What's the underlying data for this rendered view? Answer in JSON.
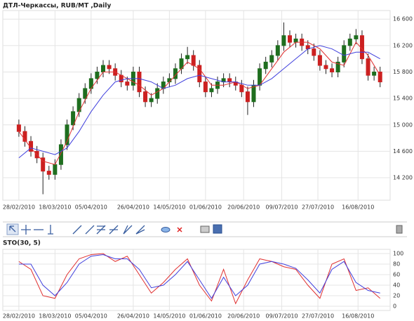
{
  "chart_data": [
    {
      "type": "candlestick",
      "title": "ДТЛ-Черкассы,  RUB/MT ,Daily",
      "x": [
        "28/02/2010",
        "03/03/2010",
        "06/03/2010",
        "09/03/2010",
        "12/03/2010",
        "15/03/2010",
        "18/03/2010",
        "21/03/2010",
        "24/03/2010",
        "27/03/2010",
        "30/03/2010",
        "02/04/2010",
        "05/04/2010",
        "08/04/2010",
        "11/04/2010",
        "14/04/2010",
        "17/04/2010",
        "20/04/2010",
        "23/04/2010",
        "26/04/2010",
        "29/04/2010",
        "02/05/2010",
        "05/05/2010",
        "08/05/2010",
        "11/05/2010",
        "14/05/2010",
        "17/05/2010",
        "20/05/2010",
        "23/05/2010",
        "26/05/2010",
        "29/05/2010",
        "01/06/2010",
        "04/06/2010",
        "07/06/2010",
        "10/06/2010",
        "13/06/2010",
        "16/06/2010",
        "19/06/2010",
        "22/06/2010",
        "25/06/2010",
        "28/06/2010",
        "01/07/2010",
        "04/07/2010",
        "07/07/2010",
        "10/07/2010",
        "13/07/2010",
        "16/07/2010",
        "19/07/2010",
        "22/07/2010",
        "25/07/2010",
        "28/07/2010",
        "31/07/2010",
        "03/08/2010",
        "06/08/2010",
        "09/08/2010",
        "12/08/2010",
        "15/08/2010",
        "18/08/2010",
        "21/08/2010",
        "24/08/2010",
        "27/08/2010"
      ],
      "open": [
        15000,
        14900,
        14750,
        14600,
        14500,
        14300,
        14250,
        14400,
        14700,
        15000,
        15200,
        15400,
        15550,
        15700,
        15800,
        15900,
        15850,
        15750,
        15650,
        15600,
        15800,
        15500,
        15350,
        15400,
        15550,
        15650,
        15700,
        15850,
        16000,
        16050,
        15900,
        15650,
        15500,
        15550,
        15650,
        15700,
        15650,
        15600,
        15500,
        15350,
        15600,
        15850,
        15950,
        16050,
        16200,
        16350,
        16250,
        16300,
        16200,
        16150,
        16050,
        15900,
        15850,
        15800,
        15950,
        16200,
        16300,
        16350,
        16000,
        15750,
        15800
      ],
      "high": [
        15080,
        14980,
        14830,
        14680,
        14580,
        14380,
        14480,
        14780,
        15080,
        15280,
        15480,
        15630,
        15780,
        15880,
        15980,
        15980,
        15930,
        15830,
        15730,
        15880,
        15880,
        15580,
        15480,
        15630,
        15730,
        15780,
        15930,
        16080,
        16180,
        16130,
        15980,
        15730,
        15630,
        15730,
        15780,
        15780,
        15730,
        15680,
        15580,
        15680,
        15930,
        16030,
        16130,
        16280,
        16550,
        16430,
        16380,
        16380,
        16280,
        16230,
        16130,
        15980,
        15930,
        16030,
        16280,
        16380,
        16450,
        16430,
        16080,
        15880,
        15880
      ],
      "low": [
        14820,
        14670,
        14520,
        14420,
        13950,
        14170,
        14170,
        14320,
        14620,
        14920,
        15120,
        15320,
        15470,
        15620,
        15720,
        15770,
        15670,
        15570,
        15520,
        15520,
        15420,
        15270,
        15270,
        15320,
        15470,
        15570,
        15620,
        15770,
        15920,
        15820,
        15570,
        15420,
        15420,
        15470,
        15570,
        15570,
        15520,
        15420,
        15150,
        15270,
        15520,
        15770,
        15870,
        15970,
        16120,
        16170,
        16170,
        16120,
        16070,
        15970,
        15820,
        15770,
        15720,
        15720,
        15870,
        16120,
        16220,
        15920,
        15670,
        15670,
        15570
      ],
      "close": [
        14900,
        14750,
        14600,
        14500,
        14300,
        14250,
        14400,
        14700,
        15000,
        15200,
        15400,
        15550,
        15700,
        15800,
        15900,
        15850,
        15750,
        15650,
        15600,
        15800,
        15500,
        15350,
        15400,
        15550,
        15650,
        15700,
        15850,
        16000,
        16050,
        15900,
        15650,
        15500,
        15550,
        15650,
        15700,
        15650,
        15600,
        15500,
        15350,
        15600,
        15850,
        15950,
        16050,
        16200,
        16350,
        16250,
        16300,
        16200,
        16150,
        16050,
        15900,
        15850,
        15800,
        15950,
        16200,
        16300,
        16350,
        16000,
        15750,
        15800,
        15650
      ],
      "up_color": "#1f6e1f",
      "down_color": "#cc2020",
      "series": [
        {
          "color": "#e03030",
          "x": [
            "28/02/2010",
            "06/03/2010",
            "12/03/2010",
            "18/03/2010",
            "24/03/2010",
            "30/03/2010",
            "05/04/2010",
            "11/04/2010",
            "17/04/2010",
            "23/04/2010",
            "29/04/2010",
            "05/05/2010",
            "11/05/2010",
            "17/05/2010",
            "23/05/2010",
            "29/05/2010",
            "04/06/2010",
            "10/06/2010",
            "16/06/2010",
            "22/06/2010",
            "28/06/2010",
            "04/07/2010",
            "10/07/2010",
            "16/07/2010",
            "22/07/2010",
            "28/07/2010",
            "03/08/2010",
            "09/08/2010",
            "15/08/2010",
            "21/08/2010",
            "27/08/2010"
          ],
          "values": [
            14900,
            14650,
            14450,
            14400,
            14750,
            15200,
            15550,
            15800,
            15800,
            15700,
            15600,
            15450,
            15550,
            15750,
            15950,
            15850,
            15600,
            15600,
            15650,
            15550,
            15600,
            15850,
            16100,
            16250,
            16250,
            16150,
            15950,
            15900,
            16250,
            16050,
            15750
          ]
        },
        {
          "color": "#4040dd",
          "x": [
            "28/02/2010",
            "06/03/2010",
            "12/03/2010",
            "18/03/2010",
            "24/03/2010",
            "30/03/2010",
            "05/04/2010",
            "11/04/2010",
            "17/04/2010",
            "23/04/2010",
            "29/04/2010",
            "05/05/2010",
            "11/05/2010",
            "17/05/2010",
            "23/05/2010",
            "29/05/2010",
            "04/06/2010",
            "10/06/2010",
            "16/06/2010",
            "22/06/2010",
            "28/06/2010",
            "04/07/2010",
            "10/07/2010",
            "16/07/2010",
            "22/07/2010",
            "28/07/2010",
            "03/08/2010",
            "09/08/2010",
            "15/08/2010",
            "21/08/2010",
            "27/08/2010"
          ],
          "values": [
            14500,
            14650,
            14600,
            14550,
            14650,
            14900,
            15200,
            15450,
            15650,
            15700,
            15700,
            15650,
            15550,
            15600,
            15700,
            15750,
            15700,
            15650,
            15650,
            15600,
            15600,
            15700,
            15850,
            16000,
            16150,
            16200,
            16150,
            16050,
            16100,
            16100,
            16000
          ]
        }
      ],
      "xlim": [
        "20/02/2010",
        "01/09/2010"
      ],
      "xticks": [
        "28/02/2010",
        "18/03/2010",
        "05/04/2010",
        "26/04/2010",
        "14/05/2010",
        "01/06/2010",
        "20/06/2010",
        "09/07/2010",
        "27/07/2010",
        "16/08/2010"
      ],
      "ylim": [
        13860,
        16730
      ],
      "yticks": [
        {
          "value": 14200,
          "label": "14 200"
        },
        {
          "value": 14600,
          "label": "14 600"
        },
        {
          "value": 15000,
          "label": "15 000"
        },
        {
          "value": 15400,
          "label": "15 400"
        },
        {
          "value": 15800,
          "label": "15 800"
        },
        {
          "value": 16200,
          "label": "16 200"
        },
        {
          "value": 16600,
          "label": "16 600"
        }
      ],
      "grid": true
    },
    {
      "type": "line",
      "title": "STO(30, 5)",
      "series": [
        {
          "color": "#e03030",
          "x": [
            "28/02/2010",
            "06/03/2010",
            "12/03/2010",
            "18/03/2010",
            "24/03/2010",
            "30/03/2010",
            "05/04/2010",
            "11/04/2010",
            "17/04/2010",
            "23/04/2010",
            "29/04/2010",
            "05/05/2010",
            "11/05/2010",
            "17/05/2010",
            "23/05/2010",
            "29/05/2010",
            "04/06/2010",
            "10/06/2010",
            "16/06/2010",
            "22/06/2010",
            "28/06/2010",
            "04/07/2010",
            "10/07/2010",
            "16/07/2010",
            "22/07/2010",
            "28/07/2010",
            "03/08/2010",
            "09/08/2010",
            "15/08/2010",
            "21/08/2010",
            "27/08/2010"
          ],
          "values": [
            85,
            70,
            20,
            15,
            60,
            90,
            98,
            100,
            85,
            95,
            60,
            25,
            45,
            70,
            90,
            40,
            10,
            70,
            5,
            50,
            90,
            85,
            75,
            70,
            40,
            15,
            80,
            90,
            30,
            35,
            15
          ]
        },
        {
          "color": "#4040dd",
          "x": [
            "28/02/2010",
            "06/03/2010",
            "12/03/2010",
            "18/03/2010",
            "24/03/2010",
            "30/03/2010",
            "05/04/2010",
            "11/04/2010",
            "17/04/2010",
            "23/04/2010",
            "29/04/2010",
            "05/05/2010",
            "11/05/2010",
            "17/05/2010",
            "23/05/2010",
            "29/05/2010",
            "04/06/2010",
            "10/06/2010",
            "16/06/2010",
            "22/06/2010",
            "28/06/2010",
            "04/07/2010",
            "10/07/2010",
            "16/07/2010",
            "22/07/2010",
            "28/07/2010",
            "03/08/2010",
            "09/08/2010",
            "15/08/2010",
            "21/08/2010",
            "27/08/2010"
          ],
          "values": [
            80,
            80,
            40,
            20,
            45,
            80,
            95,
            98,
            90,
            90,
            70,
            35,
            40,
            60,
            85,
            50,
            15,
            55,
            20,
            40,
            80,
            85,
            80,
            72,
            50,
            25,
            70,
            85,
            45,
            30,
            25
          ]
        }
      ],
      "xlim": [
        "20/02/2010",
        "01/09/2010"
      ],
      "xticks": [
        "28/02/2010",
        "18/03/2010",
        "05/04/2010",
        "26/04/2010",
        "14/05/2010",
        "01/06/2010",
        "20/06/2010",
        "09/07/2010",
        "27/07/2010",
        "16/08/2010"
      ],
      "ylim": [
        -8,
        108
      ],
      "yticks": [
        0,
        20,
        40,
        60,
        80,
        100
      ],
      "grid": true
    }
  ]
}
